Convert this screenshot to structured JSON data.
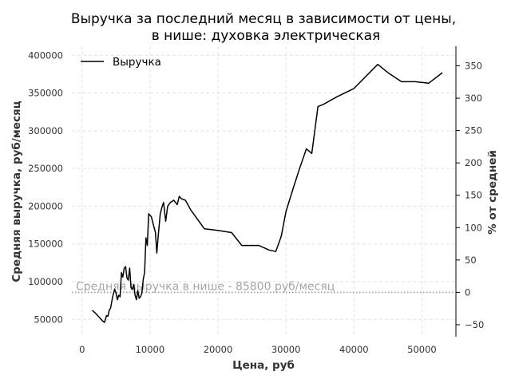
{
  "chart_data": {
    "type": "line",
    "title_line1": "Выручка за последний месяц в зависимости от цены,",
    "title_line2": "в нише: духовка электрическая",
    "xlabel": "Цена, руб",
    "ylabel": "Средняя выручка, руб/месяц",
    "y2label": "% от средней",
    "xlim": [
      -1500,
      55000
    ],
    "ylim": [
      27000,
      412000
    ],
    "x_ticks": [
      "0",
      "10000",
      "20000",
      "30000",
      "40000",
      "50000"
    ],
    "y_ticks": [
      "50000",
      "100000",
      "150000",
      "200000",
      "250000",
      "300000",
      "350000",
      "400000"
    ],
    "y2_ticks": [
      "−50",
      "0",
      "50",
      "100",
      "150",
      "200",
      "250",
      "300",
      "350"
    ],
    "grid": true,
    "legend_position": "top-left",
    "series": [
      {
        "name": "Выручка",
        "color": "#000000",
        "x": [
          1500,
          2000,
          2500,
          3000,
          3300,
          3600,
          3800,
          4000,
          4200,
          4500,
          4800,
          5000,
          5200,
          5400,
          5600,
          5800,
          6000,
          6200,
          6400,
          6600,
          6800,
          7000,
          7200,
          7400,
          7600,
          7800,
          8000,
          8200,
          8400,
          8600,
          8800,
          9000,
          9200,
          9400,
          9600,
          9800,
          10000,
          10200,
          10500,
          10800,
          11000,
          11200,
          11500,
          11800,
          12000,
          12300,
          12600,
          13000,
          13500,
          14000,
          14300,
          14600,
          15200,
          16000,
          18000,
          20000,
          22000,
          23500,
          26000,
          27500,
          28500,
          29300,
          30000,
          31000,
          32000,
          33000,
          33800,
          34700,
          35500,
          37500,
          40000,
          43500,
          45000,
          47000,
          49000,
          51000,
          53000
        ],
        "values": [
          62000,
          58000,
          53000,
          48000,
          46000,
          55000,
          54000,
          62000,
          65000,
          80000,
          90000,
          85000,
          76000,
          82000,
          80000,
          112000,
          106000,
          118000,
          120000,
          105000,
          102000,
          118000,
          92000,
          90000,
          96000,
          82000,
          76000,
          88000,
          78000,
          80000,
          85000,
          103000,
          112000,
          158000,
          148000,
          190000,
          188000,
          186000,
          175000,
          165000,
          138000,
          160000,
          190000,
          200000,
          205000,
          180000,
          200000,
          205000,
          208000,
          202000,
          213000,
          210000,
          208000,
          195000,
          170000,
          168000,
          165000,
          148000,
          148000,
          142000,
          140000,
          160000,
          193000,
          222000,
          250000,
          276000,
          270000,
          332000,
          335000,
          345000,
          356000,
          388000,
          377000,
          365000,
          365000,
          363000,
          377000
        ]
      }
    ],
    "mean_value": 85800,
    "annotation": "Средняя выручка в нише - 85800 руб/месяц"
  }
}
